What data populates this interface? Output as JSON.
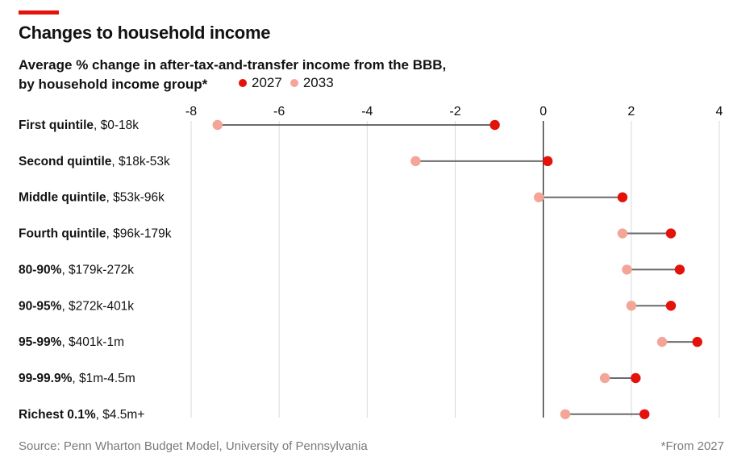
{
  "header": {
    "title": "Changes to household income",
    "subtitle_line1": "Average % change in after-tax-and-transfer income from the BBB,",
    "subtitle_line2": "by household income group*"
  },
  "legend": [
    {
      "label": "2027",
      "color": "#e3120b"
    },
    {
      "label": "2033",
      "color": "#f4a597"
    }
  ],
  "footer": {
    "source": "Source: Penn Wharton Budget Model, University of Pennsylvania",
    "footnote": "*From 2027"
  },
  "chart_data": {
    "type": "dumbbell",
    "xlim": [
      -8,
      4
    ],
    "x_ticks": [
      "-8",
      "-6",
      "-4",
      "-2",
      "0",
      "2",
      "4"
    ],
    "grid": true,
    "categories": [
      {
        "bold": "First quintile",
        "rest": ", $0-18k"
      },
      {
        "bold": "Second quintile",
        "rest": ", $18k-53k"
      },
      {
        "bold": "Middle quintile",
        "rest": ", $53k-96k"
      },
      {
        "bold": "Fourth quintile",
        "rest": ", $96k-179k"
      },
      {
        "bold": "80-90%",
        "rest": ", $179k-272k"
      },
      {
        "bold": "90-95%",
        "rest": ", $272k-401k"
      },
      {
        "bold": "95-99%",
        "rest": ", $401k-1m"
      },
      {
        "bold": "99-99.9%",
        "rest": ", $1m-4.5m"
      },
      {
        "bold": "Richest 0.1%",
        "rest": ", $4.5m+"
      }
    ],
    "series": [
      {
        "name": "2027",
        "color": "#e3120b",
        "values": [
          -1.1,
          0.1,
          1.8,
          2.9,
          3.1,
          2.9,
          3.5,
          2.1,
          2.3
        ]
      },
      {
        "name": "2033",
        "color": "#f4a597",
        "values": [
          -7.4,
          -2.9,
          -0.1,
          1.8,
          1.9,
          2.0,
          2.7,
          1.4,
          0.5
        ]
      }
    ]
  }
}
